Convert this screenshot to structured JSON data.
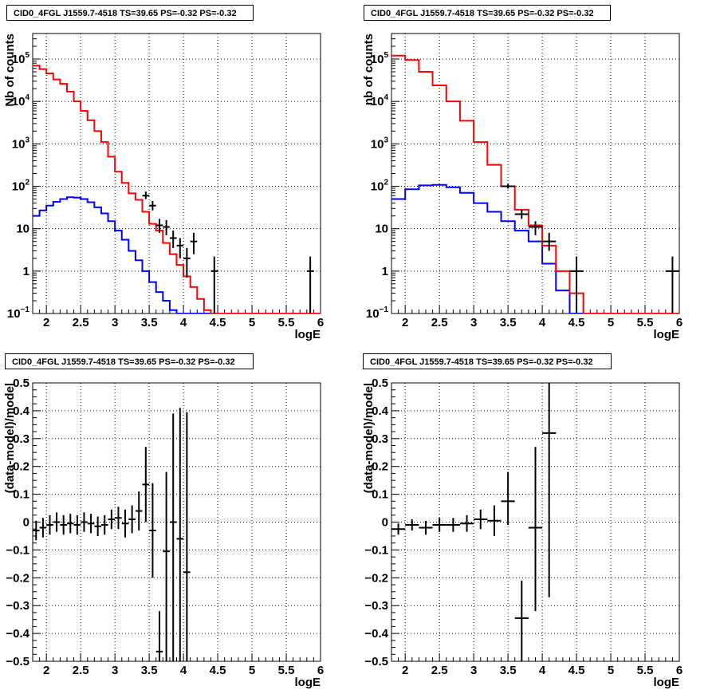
{
  "chart_data": [
    {
      "id": "p1",
      "type": "line",
      "title": "CID0_4FGL J1559.7-4518 TS=39.65 PS=-0.32 PS=-0.32",
      "xlabel": "logE",
      "ylabel": "Nb of counts",
      "xlim": [
        1.8,
        6.0
      ],
      "ylim": [
        0.1,
        400000
      ],
      "yscale": "log",
      "grid": true,
      "xticks": [
        "2",
        "2.5",
        "3",
        "3.5",
        "4",
        "4.5",
        "5",
        "5.5",
        "6"
      ],
      "yticks": [
        {
          "value": 0.1,
          "base": "10",
          "exp": "−1"
        },
        {
          "value": 1,
          "base": "1",
          "exp": ""
        },
        {
          "value": 10,
          "base": "10",
          "exp": ""
        },
        {
          "value": 100,
          "base": "10",
          "exp": "2"
        },
        {
          "value": 1000,
          "base": "10",
          "exp": "3"
        },
        {
          "value": 10000,
          "base": "10",
          "exp": "4"
        },
        {
          "value": 100000,
          "base": "10",
          "exp": "5"
        }
      ],
      "model_total": {
        "color": "#ff0000",
        "bin_edges": [
          1.8,
          1.9,
          2.0,
          2.1,
          2.2,
          2.3,
          2.4,
          2.5,
          2.6,
          2.7,
          2.8,
          2.9,
          3.0,
          3.1,
          3.2,
          3.3,
          3.4,
          3.5,
          3.6,
          3.7,
          3.8,
          3.9,
          4.0,
          4.1,
          4.2,
          4.3,
          4.4,
          4.5,
          4.6,
          4.7,
          6.0
        ],
        "values": [
          70000,
          58000,
          46000,
          33000,
          26000,
          17000,
          10000,
          6000,
          3600,
          2000,
          1100,
          500,
          220,
          120,
          68,
          48,
          25,
          13,
          9,
          4.6,
          2.5,
          1.4,
          0.75,
          0.42,
          0.22,
          0.12,
          0.1,
          0.1,
          0.1,
          0.1
        ]
      },
      "model_source": {
        "color": "#0000ff",
        "bin_edges": [
          1.8,
          1.9,
          2.0,
          2.1,
          2.2,
          2.3,
          2.4,
          2.5,
          2.6,
          2.7,
          2.8,
          2.9,
          3.0,
          3.1,
          3.2,
          3.3,
          3.4,
          3.5,
          3.6,
          3.7,
          3.8,
          3.9,
          4.0,
          4.1,
          4.2,
          4.3,
          4.4,
          6.0
        ],
        "values": [
          20,
          27,
          35,
          43,
          50,
          55,
          54,
          50,
          42,
          32,
          23,
          15,
          9,
          5.5,
          3,
          1.8,
          1,
          0.55,
          0.32,
          0.2,
          0.12,
          0.1,
          0.1,
          0.1,
          0.1,
          0.1,
          0.1
        ]
      },
      "data_points": [
        {
          "x": 3.45,
          "y": 60,
          "ylo": 50,
          "yhi": 75,
          "xerr": 0.05
        },
        {
          "x": 3.55,
          "y": 35,
          "ylo": 27,
          "yhi": 45,
          "xerr": 0.05
        },
        {
          "x": 3.65,
          "y": 12,
          "ylo": 8,
          "yhi": 17,
          "xerr": 0.05
        },
        {
          "x": 3.75,
          "y": 11,
          "ylo": 7,
          "yhi": 16,
          "xerr": 0.05
        },
        {
          "x": 3.85,
          "y": 6,
          "ylo": 3.5,
          "yhi": 9,
          "xerr": 0.05
        },
        {
          "x": 3.95,
          "y": 4,
          "ylo": 2,
          "yhi": 6,
          "xerr": 0.05
        },
        {
          "x": 4.05,
          "y": 2,
          "ylo": 0.7,
          "yhi": 3.5,
          "xerr": 0.05
        },
        {
          "x": 4.15,
          "y": 5,
          "ylo": 2.5,
          "yhi": 8,
          "xerr": 0.05
        },
        {
          "x": 4.45,
          "y": 1,
          "ylo": 0.1,
          "yhi": 2.2,
          "xerr": 0.05
        },
        {
          "x": 5.85,
          "y": 1,
          "ylo": 0.1,
          "yhi": 2.2,
          "xerr": 0.05
        }
      ]
    },
    {
      "id": "p2",
      "type": "line",
      "title": "CID0_4FGL J1559.7-4518 TS=39.65 PS=-0.32 PS=-0.32",
      "xlabel": "logE",
      "ylabel": "nb of counts",
      "xlim": [
        1.8,
        6.0
      ],
      "ylim": [
        0.1,
        400000
      ],
      "yscale": "log",
      "grid": true,
      "xticks": [
        "2",
        "2.5",
        "3",
        "3.5",
        "4",
        "4.5",
        "5",
        "5.5",
        "6"
      ],
      "yticks": [
        {
          "value": 0.1,
          "base": "10",
          "exp": "−1"
        },
        {
          "value": 1,
          "base": "1",
          "exp": ""
        },
        {
          "value": 10,
          "base": "10",
          "exp": ""
        },
        {
          "value": 100,
          "base": "10",
          "exp": "2"
        },
        {
          "value": 1000,
          "base": "10",
          "exp": "3"
        },
        {
          "value": 10000,
          "base": "10",
          "exp": "4"
        },
        {
          "value": 100000,
          "base": "10",
          "exp": "5"
        }
      ],
      "model_total": {
        "color": "#ff0000",
        "bin_edges": [
          1.8,
          2.0,
          2.2,
          2.4,
          2.6,
          2.8,
          3.0,
          3.2,
          3.4,
          3.6,
          3.8,
          4.0,
          4.2,
          4.4,
          4.6,
          4.8,
          6.0
        ],
        "values": [
          120000,
          95000,
          50000,
          24000,
          10000,
          3500,
          1100,
          320,
          100,
          28,
          12,
          4,
          1,
          0.3,
          0.1,
          0.1
        ]
      },
      "model_source": {
        "color": "#0000ff",
        "bin_edges": [
          1.8,
          2.0,
          2.2,
          2.4,
          2.6,
          2.8,
          3.0,
          3.2,
          3.4,
          3.6,
          3.8,
          4.0,
          4.2,
          4.4,
          4.6,
          6.0
        ],
        "values": [
          50,
          85,
          105,
          108,
          95,
          70,
          40,
          25,
          15,
          9,
          5,
          1.5,
          0.35,
          0.1,
          0.1
        ]
      },
      "data_points": [
        {
          "x": 3.5,
          "y": 100,
          "ylo": 88,
          "yhi": 115,
          "xerr": 0.1
        },
        {
          "x": 3.7,
          "y": 22,
          "ylo": 17,
          "yhi": 28,
          "xerr": 0.1
        },
        {
          "x": 3.9,
          "y": 11,
          "ylo": 7,
          "yhi": 15,
          "xerr": 0.1
        },
        {
          "x": 4.1,
          "y": 5,
          "ylo": 3,
          "yhi": 8,
          "xerr": 0.1
        },
        {
          "x": 4.5,
          "y": 1,
          "ylo": 0.1,
          "yhi": 2.2,
          "xerr": 0.1
        },
        {
          "x": 5.9,
          "y": 1,
          "ylo": 0.1,
          "yhi": 2.2,
          "xerr": 0.1
        }
      ]
    },
    {
      "id": "p3",
      "type": "scatter",
      "title": "CID0_4FGL J1559.7-4518 TS=39.65 PS=-0.32 PS=-0.32",
      "xlabel": "logE",
      "ylabel": "(data-model)/model",
      "xlim": [
        1.8,
        6.0
      ],
      "ylim": [
        -0.5,
        0.5
      ],
      "yscale": "linear",
      "grid": true,
      "xticks": [
        "2",
        "2.5",
        "3",
        "3.5",
        "4",
        "4.5",
        "5",
        "5.5",
        "6"
      ],
      "yticks": [
        "−0.5",
        "−0.4",
        "−0.3",
        "−0.2",
        "−0.1",
        "0",
        "0.1",
        "0.2",
        "0.3",
        "0.4",
        "0.5"
      ],
      "data_points": [
        {
          "x": 1.85,
          "y": -0.03,
          "ylo": -0.065,
          "yhi": 0.005,
          "xerr": 0.05
        },
        {
          "x": 1.95,
          "y": -0.02,
          "ylo": -0.055,
          "yhi": 0.015,
          "xerr": 0.05
        },
        {
          "x": 2.05,
          "y": -0.01,
          "ylo": -0.045,
          "yhi": 0.025,
          "xerr": 0.05
        },
        {
          "x": 2.15,
          "y": 0.0,
          "ylo": -0.035,
          "yhi": 0.035,
          "xerr": 0.05
        },
        {
          "x": 2.25,
          "y": -0.01,
          "ylo": -0.045,
          "yhi": 0.025,
          "xerr": 0.05
        },
        {
          "x": 2.35,
          "y": -0.005,
          "ylo": -0.04,
          "yhi": 0.03,
          "xerr": 0.05
        },
        {
          "x": 2.45,
          "y": -0.01,
          "ylo": -0.045,
          "yhi": 0.025,
          "xerr": 0.05
        },
        {
          "x": 2.55,
          "y": 0.0,
          "ylo": -0.035,
          "yhi": 0.035,
          "xerr": 0.05
        },
        {
          "x": 2.65,
          "y": -0.005,
          "ylo": -0.04,
          "yhi": 0.03,
          "xerr": 0.05
        },
        {
          "x": 2.75,
          "y": -0.015,
          "ylo": -0.05,
          "yhi": 0.02,
          "xerr": 0.05
        },
        {
          "x": 2.85,
          "y": -0.01,
          "ylo": -0.045,
          "yhi": 0.025,
          "xerr": 0.05
        },
        {
          "x": 2.95,
          "y": 0.01,
          "ylo": -0.025,
          "yhi": 0.045,
          "xerr": 0.05
        },
        {
          "x": 3.05,
          "y": 0.015,
          "ylo": -0.025,
          "yhi": 0.055,
          "xerr": 0.05
        },
        {
          "x": 3.15,
          "y": -0.005,
          "ylo": -0.055,
          "yhi": 0.045,
          "xerr": 0.05
        },
        {
          "x": 3.25,
          "y": 0.01,
          "ylo": -0.04,
          "yhi": 0.06,
          "xerr": 0.05
        },
        {
          "x": 3.35,
          "y": 0.04,
          "ylo": -0.03,
          "yhi": 0.11,
          "xerr": 0.05
        },
        {
          "x": 3.45,
          "y": 0.135,
          "ylo": 0.0,
          "yhi": 0.27,
          "xerr": 0.05
        },
        {
          "x": 3.55,
          "y": -0.03,
          "ylo": -0.2,
          "yhi": 0.14,
          "xerr": 0.05
        },
        {
          "x": 3.65,
          "y": -0.465,
          "ylo": -0.5,
          "yhi": -0.32,
          "xerr": 0.05
        },
        {
          "x": 3.75,
          "y": -0.105,
          "ylo": -0.5,
          "yhi": 0.18,
          "xerr": 0.05
        },
        {
          "x": 3.85,
          "y": 0.0,
          "ylo": -0.5,
          "yhi": 0.39,
          "xerr": 0.05
        },
        {
          "x": 3.95,
          "y": -0.06,
          "ylo": -0.5,
          "yhi": 0.41,
          "xerr": 0.05
        },
        {
          "x": 4.05,
          "y": -0.18,
          "ylo": -0.5,
          "yhi": 0.395,
          "xerr": 0.05
        }
      ]
    },
    {
      "id": "p4",
      "type": "scatter",
      "title": "CID0_4FGL J1559.7-4518 TS=39.65 PS=-0.32 PS=-0.32",
      "xlabel": "logE",
      "ylabel": "(data-model)/model",
      "xlim": [
        1.8,
        6.0
      ],
      "ylim": [
        -0.5,
        0.5
      ],
      "yscale": "linear",
      "grid": true,
      "xticks": [
        "2",
        "2.5",
        "3",
        "3.5",
        "4",
        "4.5",
        "5",
        "5.5",
        "6"
      ],
      "yticks": [
        "−0.5",
        "−0.4",
        "−0.3",
        "−0.2",
        "−0.1",
        "0",
        "0.1",
        "0.2",
        "0.3",
        "0.4",
        "0.5"
      ],
      "data_points": [
        {
          "x": 1.9,
          "y": -0.025,
          "ylo": -0.045,
          "yhi": -0.005,
          "xerr": 0.1
        },
        {
          "x": 2.1,
          "y": -0.01,
          "ylo": -0.03,
          "yhi": 0.01,
          "xerr": 0.1
        },
        {
          "x": 2.3,
          "y": -0.02,
          "ylo": -0.045,
          "yhi": 0.005,
          "xerr": 0.1
        },
        {
          "x": 2.5,
          "y": -0.01,
          "ylo": -0.035,
          "yhi": 0.015,
          "xerr": 0.1
        },
        {
          "x": 2.7,
          "y": -0.01,
          "ylo": -0.035,
          "yhi": 0.015,
          "xerr": 0.1
        },
        {
          "x": 2.9,
          "y": -0.005,
          "ylo": -0.035,
          "yhi": 0.025,
          "xerr": 0.1
        },
        {
          "x": 3.1,
          "y": 0.01,
          "ylo": -0.025,
          "yhi": 0.045,
          "xerr": 0.1
        },
        {
          "x": 3.3,
          "y": 0.005,
          "ylo": -0.05,
          "yhi": 0.06,
          "xerr": 0.1
        },
        {
          "x": 3.5,
          "y": 0.075,
          "ylo": -0.01,
          "yhi": 0.18,
          "xerr": 0.1
        },
        {
          "x": 3.7,
          "y": -0.345,
          "ylo": -0.5,
          "yhi": -0.21,
          "xerr": 0.1
        },
        {
          "x": 3.9,
          "y": -0.02,
          "ylo": -0.32,
          "yhi": 0.27,
          "xerr": 0.1
        },
        {
          "x": 4.1,
          "y": 0.32,
          "ylo": -0.27,
          "yhi": 0.5,
          "xerr": 0.1
        }
      ]
    }
  ]
}
